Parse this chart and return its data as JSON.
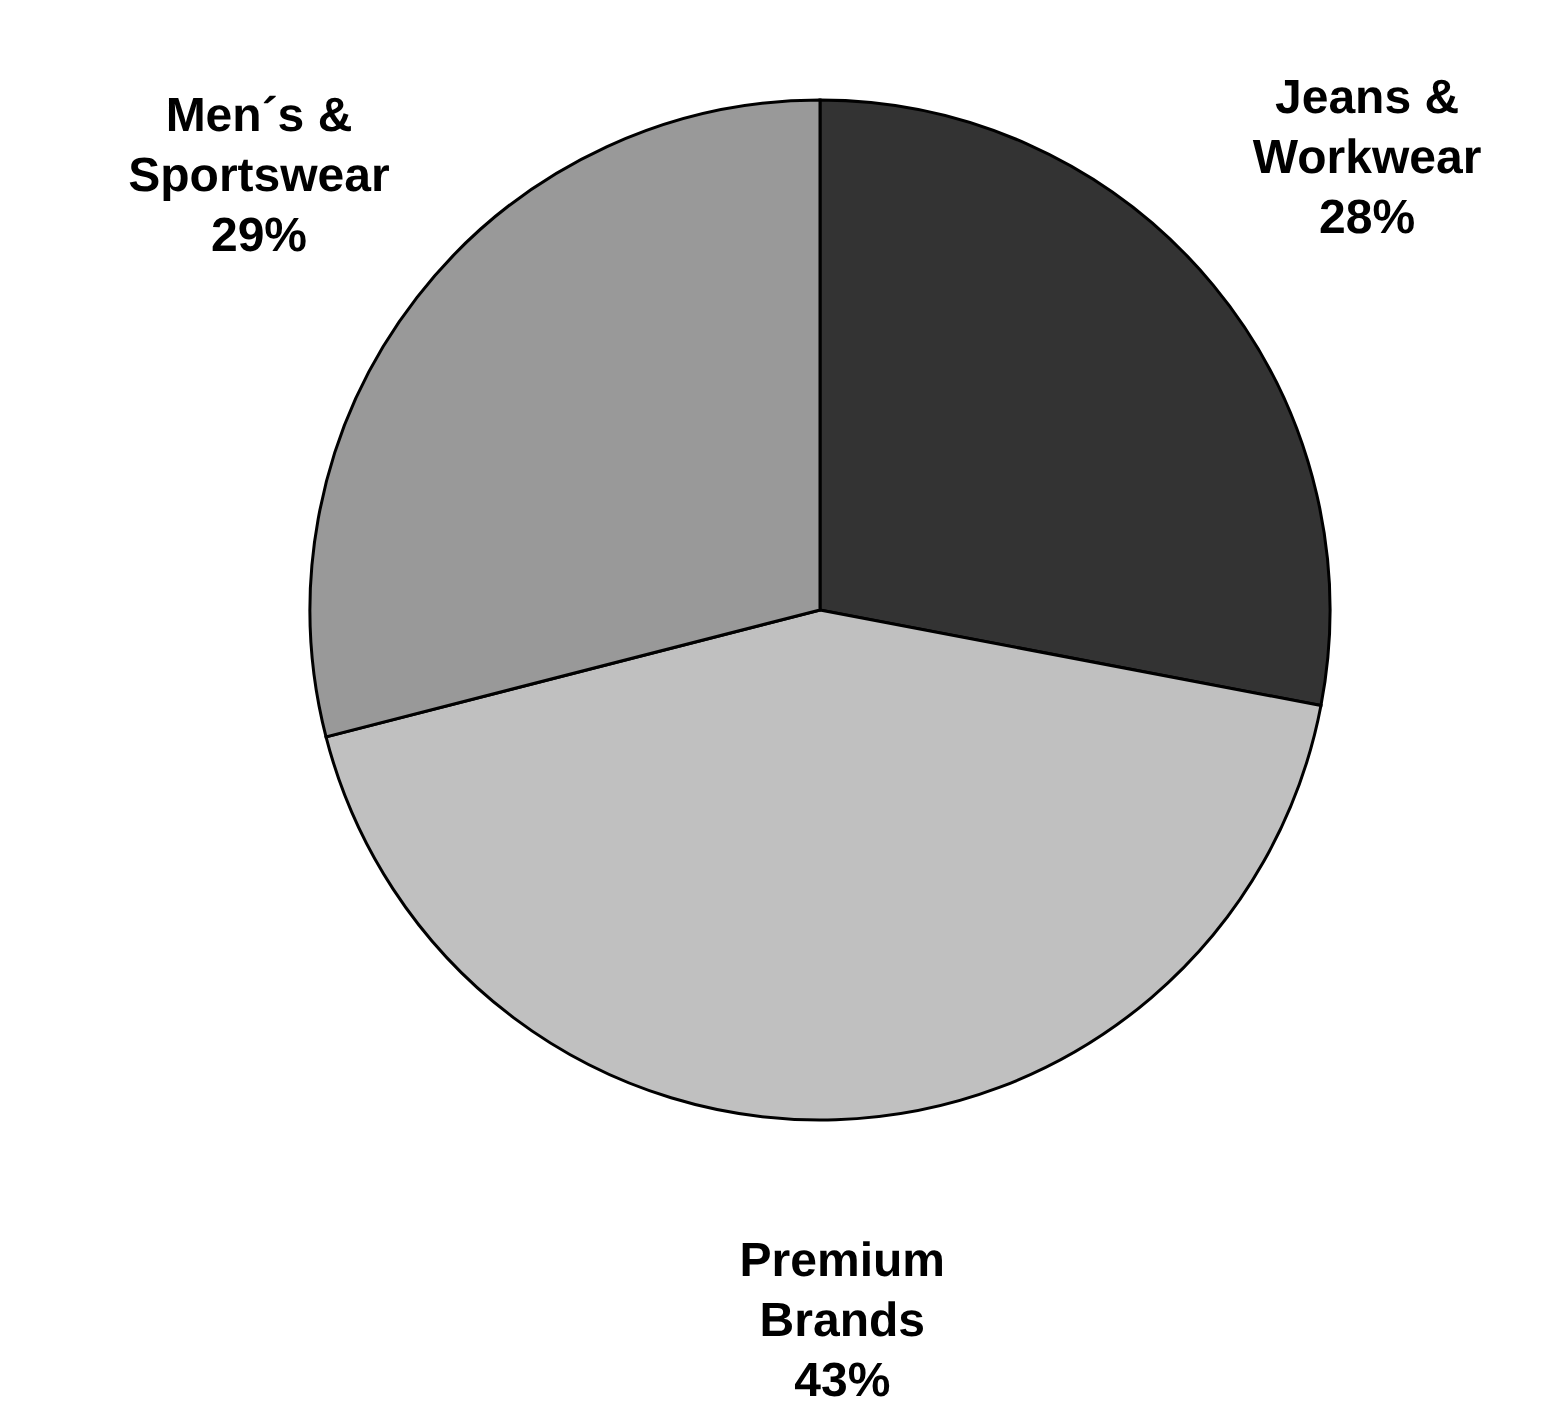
{
  "chart_data": {
    "type": "pie",
    "categories": [
      "Jeans & Workwear",
      "Premium Brands",
      "Men´s & Sportswear"
    ],
    "values": [
      28,
      43,
      29
    ],
    "value_labels": [
      "28%",
      "43%",
      "29%"
    ],
    "colors": [
      "#333333",
      "#c0c0c0",
      "#999999"
    ],
    "legend": false
  }
}
